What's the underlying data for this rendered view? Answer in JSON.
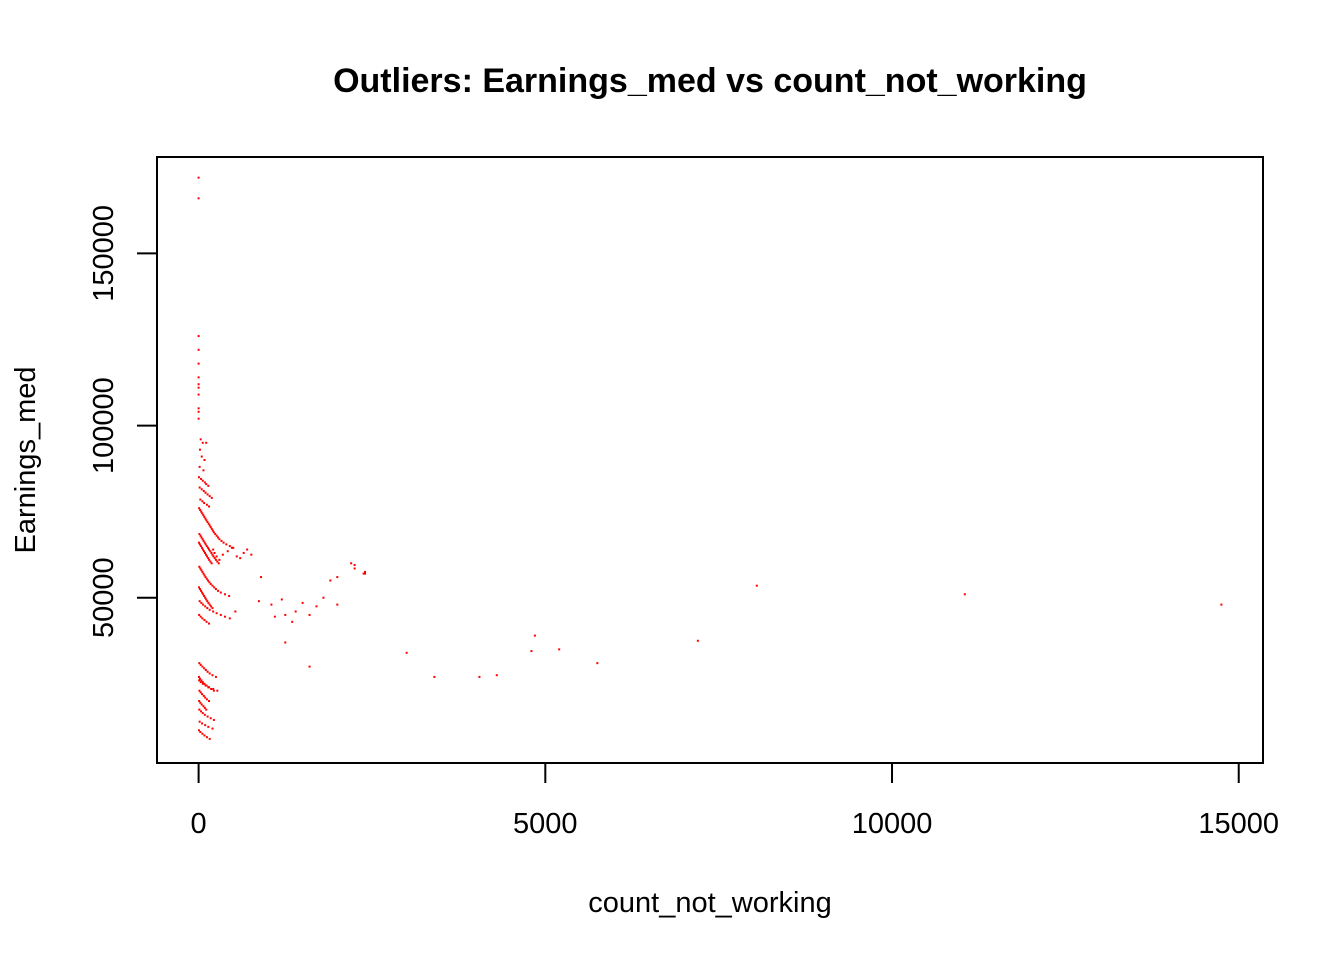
{
  "chart_data": {
    "type": "scatter",
    "title": "Outliers: Earnings_med vs count_not_working",
    "xlabel": "count_not_working",
    "ylabel": "Earnings_med",
    "xlim": [
      -600,
      15350
    ],
    "ylim": [
      2000,
      178000
    ],
    "x_ticks": [
      0,
      5000,
      10000,
      15000
    ],
    "x_tick_labels": [
      "0",
      "5000",
      "10000",
      "15000"
    ],
    "y_ticks": [
      50000,
      100000,
      150000
    ],
    "y_tick_labels": [
      "50000",
      "100000",
      "150000"
    ],
    "grid": false,
    "legend": "none",
    "point_color": "#ff0000",
    "series": [
      {
        "x": [
          0,
          0,
          0,
          0,
          0,
          0,
          0,
          0,
          0,
          0,
          0,
          0,
          30,
          60,
          110,
          20,
          45,
          85,
          15,
          70,
          5,
          35,
          60,
          90,
          110,
          140,
          15,
          45,
          75,
          100,
          130,
          160,
          190,
          25,
          55,
          80,
          120,
          150,
          8,
          22,
          38,
          52,
          68,
          82,
          98,
          112,
          128,
          145,
          160,
          175,
          190,
          205,
          220,
          240,
          260,
          280,
          300,
          330,
          360,
          400,
          450,
          500,
          12,
          28,
          42,
          58,
          72,
          88,
          102,
          118,
          135,
          150,
          168,
          185,
          200,
          215,
          232,
          250,
          270,
          290,
          5,
          18,
          33,
          48,
          62,
          77,
          92,
          106,
          122,
          138,
          152,
          170,
          188,
          210,
          230,
          260,
          300,
          350,
          420,
          480,
          550,
          600,
          650,
          700,
          760,
          10,
          25,
          40,
          55,
          70,
          85,
          100,
          118,
          136,
          155,
          175,
          200,
          225,
          250,
          280,
          320,
          380,
          440,
          6,
          20,
          35,
          50,
          65,
          80,
          95,
          110,
          125,
          142,
          160,
          180,
          200,
          15,
          40,
          65,
          95,
          125,
          160,
          210,
          260,
          320,
          380,
          450,
          530,
          8,
          30,
          55,
          85,
          115,
          150,
          10,
          30,
          55,
          80,
          105,
          130,
          160,
          200,
          250,
          5,
          20,
          40,
          60,
          85,
          115,
          140,
          180,
          220,
          12,
          30,
          50,
          75,
          95,
          120,
          150,
          8,
          25,
          45,
          70,
          90,
          110,
          10,
          35,
          60,
          90,
          130,
          175,
          220,
          15,
          50,
          95,
          140,
          200,
          5,
          25,
          55,
          85,
          120,
          160,
          8,
          30,
          60,
          100,
          150,
          210,
          270,
          900,
          1100,
          1250,
          1350,
          1500,
          1800,
          2000,
          2200,
          2400,
          870,
          1050,
          1200,
          1400,
          1600,
          1700,
          2400,
          2250,
          2250,
          2000,
          1900,
          2380,
          1250,
          1600,
          3000,
          3400,
          4050,
          4300,
          4800,
          4850,
          5200,
          5750,
          7200,
          8050,
          11050,
          14750
        ],
        "y": [
          172000,
          166000,
          126000,
          122000,
          118000,
          114000,
          112000,
          111000,
          109000,
          105000,
          104000,
          102000,
          96000,
          95000,
          95000,
          93000,
          91000,
          90000,
          88000,
          87000,
          85000,
          84500,
          84000,
          83500,
          83000,
          82500,
          82000,
          81500,
          81000,
          80500,
          80000,
          79500,
          79000,
          78500,
          78000,
          77500,
          77000,
          76500,
          76000,
          75500,
          75000,
          74500,
          74000,
          73500,
          73000,
          72500,
          72000,
          71500,
          71000,
          70500,
          70000,
          69500,
          69000,
          68500,
          68000,
          67500,
          67000,
          66500,
          66000,
          65500,
          65000,
          64500,
          68500,
          68000,
          67500,
          67000,
          66500,
          66000,
          65500,
          65000,
          64500,
          64000,
          63500,
          63000,
          62500,
          62000,
          61500,
          61000,
          60500,
          60000,
          66000,
          65500,
          65000,
          64500,
          64000,
          63500,
          63000,
          62500,
          62000,
          61500,
          61000,
          60500,
          60000,
          64000,
          63000,
          62000,
          61000,
          62500,
          63500,
          64500,
          62000,
          61500,
          63000,
          64000,
          62500,
          59000,
          58500,
          58000,
          57500,
          57000,
          56500,
          56000,
          55500,
          55000,
          54500,
          54000,
          53500,
          53000,
          52500,
          52000,
          51500,
          51000,
          50500,
          53000,
          52500,
          52000,
          51500,
          51000,
          50500,
          50000,
          49500,
          49000,
          48500,
          48000,
          47500,
          47000,
          49000,
          48500,
          48000,
          47500,
          47000,
          46500,
          46000,
          45500,
          45000,
          44500,
          44000,
          46000,
          45000,
          44500,
          44000,
          43500,
          43000,
          42500,
          31000,
          30500,
          30000,
          29500,
          29000,
          28500,
          28000,
          27500,
          27000,
          27000,
          26500,
          26000,
          25500,
          25000,
          24500,
          24000,
          23500,
          23000,
          23000,
          22500,
          22000,
          21500,
          21000,
          20500,
          20000,
          20000,
          19500,
          19000,
          18500,
          18000,
          17500,
          17500,
          17000,
          16500,
          16000,
          15500,
          15000,
          14500,
          14000,
          13500,
          13000,
          12500,
          12000,
          11500,
          11000,
          10500,
          10000,
          9500,
          9000,
          26000,
          25500,
          25000,
          24500,
          24000,
          23500,
          23000,
          56000,
          44500,
          45000,
          43000,
          48500,
          50000,
          48000,
          60000,
          57000,
          49000,
          48000,
          49500,
          46000,
          45000,
          47500,
          57500,
          58500,
          59500,
          56000,
          55000,
          57000,
          37000,
          30000,
          34000,
          27000,
          27000,
          27500,
          34500,
          39000,
          35000,
          31000,
          37500,
          53500,
          51000,
          48000
        ]
      }
    ]
  }
}
